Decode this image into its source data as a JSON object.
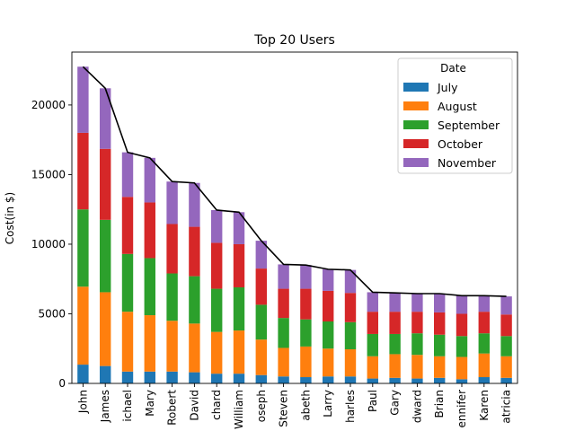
{
  "chart_data": {
    "type": "bar",
    "stacked": true,
    "title": "Top 20 Users",
    "xlabel": "",
    "ylabel": "Cost(in $)",
    "ylim": [
      0,
      23800
    ],
    "yticks": [
      0,
      5000,
      10000,
      15000,
      20000
    ],
    "categories": [
      "John",
      "James",
      "ichael",
      "Mary",
      "Robert",
      "David",
      "chard",
      "William",
      "oseph",
      "Steven",
      "abeth",
      "Larry",
      "harles",
      "Paul",
      "Gary",
      "dward",
      "Brian",
      "ennifer",
      "Karen",
      "atricia"
    ],
    "series": [
      {
        "name": "July",
        "color": "#1f77b4",
        "values": [
          1350,
          1250,
          850,
          850,
          850,
          800,
          700,
          700,
          600,
          500,
          450,
          500,
          500,
          350,
          400,
          350,
          400,
          300,
          450,
          400
        ]
      },
      {
        "name": "August",
        "color": "#ff7f0e",
        "values": [
          5600,
          5300,
          4300,
          4050,
          3650,
          3500,
          3000,
          3100,
          2550,
          2050,
          2200,
          2000,
          1950,
          1600,
          1700,
          1700,
          1550,
          1600,
          1700,
          1550
        ]
      },
      {
        "name": "September",
        "color": "#2ca02c",
        "values": [
          5550,
          5200,
          4150,
          4100,
          3400,
          3400,
          3100,
          3100,
          2500,
          2150,
          1950,
          1950,
          1950,
          1600,
          1450,
          1550,
          1550,
          1500,
          1450,
          1450
        ]
      },
      {
        "name": "October",
        "color": "#d62728",
        "values": [
          5500,
          5100,
          4100,
          4000,
          3550,
          3550,
          3300,
          3100,
          2600,
          2100,
          2200,
          2200,
          2100,
          1600,
          1600,
          1550,
          1600,
          1600,
          1550,
          1550
        ]
      },
      {
        "name": "November",
        "color": "#9467bd",
        "values": [
          4750,
          4350,
          3200,
          3200,
          3050,
          3150,
          2350,
          2300,
          2000,
          1750,
          1700,
          1550,
          1650,
          1400,
          1350,
          1300,
          1350,
          1300,
          1150,
          1300
        ]
      }
    ],
    "totals_line": {
      "color": "#000000",
      "values": [
        22750,
        21200,
        16600,
        16200,
        14500,
        14400,
        12450,
        12300,
        10250,
        8550,
        8500,
        8200,
        8150,
        6550,
        6500,
        6450,
        6450,
        6300,
        6300,
        6250
      ]
    },
    "legend": {
      "title": "Date",
      "placement": "top-right"
    },
    "grid": false
  }
}
